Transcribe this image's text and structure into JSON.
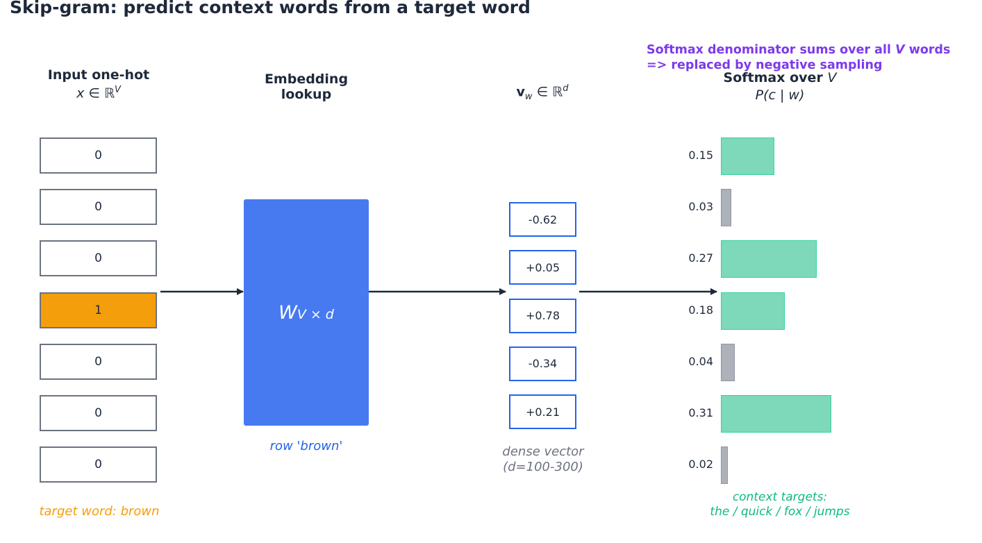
{
  "title": "Skip-gram: predict context words from a target word",
  "note": {
    "line1": "Softmax denominator sums over all V words",
    "line2": "=> replaced by negative sampling"
  },
  "input": {
    "header": "Input one-hot",
    "subheader": "x ∈ ℝ^V",
    "cells": [
      "0",
      "0",
      "0",
      "1",
      "0",
      "0",
      "0"
    ],
    "active_index": 3,
    "caption": "target word: brown"
  },
  "embedding": {
    "header_line1": "Embedding",
    "header_line2": "lookup",
    "matrix_label": "W",
    "matrix_subscript": "V × d",
    "caption": "row 'brown'"
  },
  "vector": {
    "header": "v_w ∈ ℝ^d",
    "values": [
      "-0.62",
      "+0.05",
      "+0.78",
      "-0.34",
      "+0.21"
    ],
    "caption_line1": "dense vector",
    "caption_line2": "(d=100-300)"
  },
  "softmax": {
    "header": "Softmax over V",
    "subheader": "P(c | w)",
    "caption_line1": "context targets:",
    "caption_line2": "the / quick / fox / jumps"
  },
  "chart_data": {
    "type": "bar",
    "orientation": "horizontal",
    "values": [
      0.15,
      0.03,
      0.27,
      0.18,
      0.04,
      0.31,
      0.02
    ],
    "labels": [
      "0.15",
      "0.03",
      "0.27",
      "0.18",
      "0.04",
      "0.31",
      "0.02"
    ],
    "is_context_target": [
      true,
      false,
      true,
      true,
      false,
      true,
      false
    ]
  },
  "colors": {
    "target_fill": "#f59e0b",
    "embedding_fill": "#477af1",
    "vector_border": "#2563eb",
    "context_fill": "#7dd9b9",
    "context_border": "#34d399",
    "noncontext_fill": "#adb1ba",
    "noncontext_border": "#8f95a3",
    "note_color": "#7c3aed",
    "arrow_color": "#1e293b"
  }
}
